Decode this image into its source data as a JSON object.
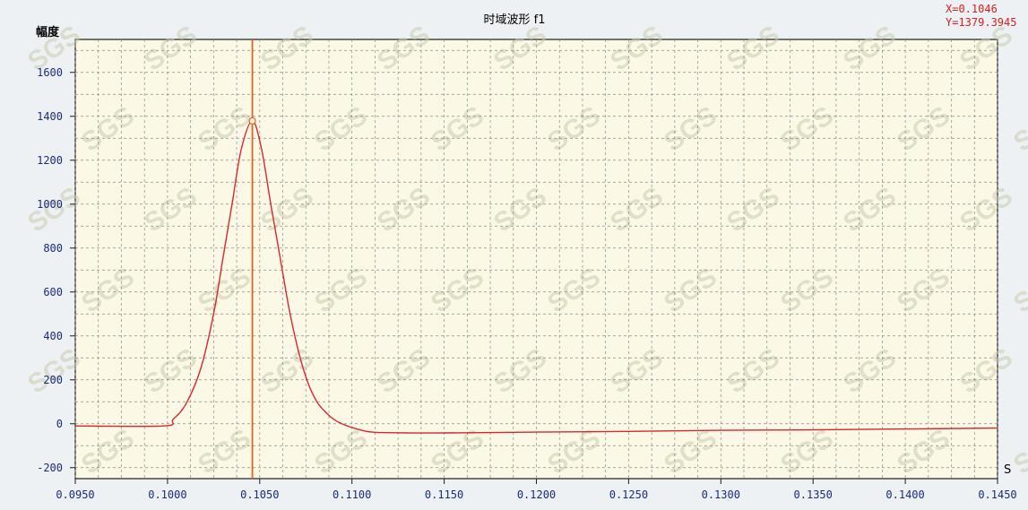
{
  "chart_data": {
    "type": "line",
    "title": "时域波形 f1",
    "ylabel": "幅度",
    "xlabel": "S",
    "xlim": [
      0.095,
      0.145
    ],
    "ylim": [
      -250,
      1750
    ],
    "x_ticks": [
      "0.0950",
      "0.1000",
      "0.1050",
      "0.1100",
      "0.1150",
      "0.1200",
      "0.1250",
      "0.1300",
      "0.1350",
      "0.1400",
      "0.1450"
    ],
    "y_ticks": [
      "1600",
      "1400",
      "1200",
      "1000",
      "800",
      "600",
      "400",
      "200",
      "0",
      "-200"
    ],
    "grid": true,
    "series": [
      {
        "color": "#d9272e",
        "x": [
          0.095,
          0.0998,
          0.1003,
          0.101,
          0.1018,
          0.1025,
          0.103,
          0.1035,
          0.104,
          0.1046,
          0.1051,
          0.1056,
          0.1061,
          0.1066,
          0.1071,
          0.1076,
          0.1081,
          0.1086,
          0.1091,
          0.1096,
          0.1101,
          0.1108,
          0.1115,
          0.113,
          0.115,
          0.12,
          0.125,
          0.13,
          0.135,
          0.14,
          0.145
        ],
        "y": [
          -10,
          -10,
          20,
          90,
          250,
          500,
          750,
          1000,
          1250,
          1379,
          1250,
          1000,
          760,
          520,
          330,
          190,
          100,
          50,
          15,
          -5,
          -20,
          -35,
          -40,
          -42,
          -42,
          -38,
          -35,
          -30,
          -28,
          -24,
          -20
        ]
      }
    ],
    "marker": {
      "x": 0.1046,
      "y": 1379.3945,
      "color": "#e0622a"
    },
    "readout": {
      "x_text": "X=0.1046",
      "y_text": "Y=1379.3945"
    },
    "watermark": "SGS"
  }
}
